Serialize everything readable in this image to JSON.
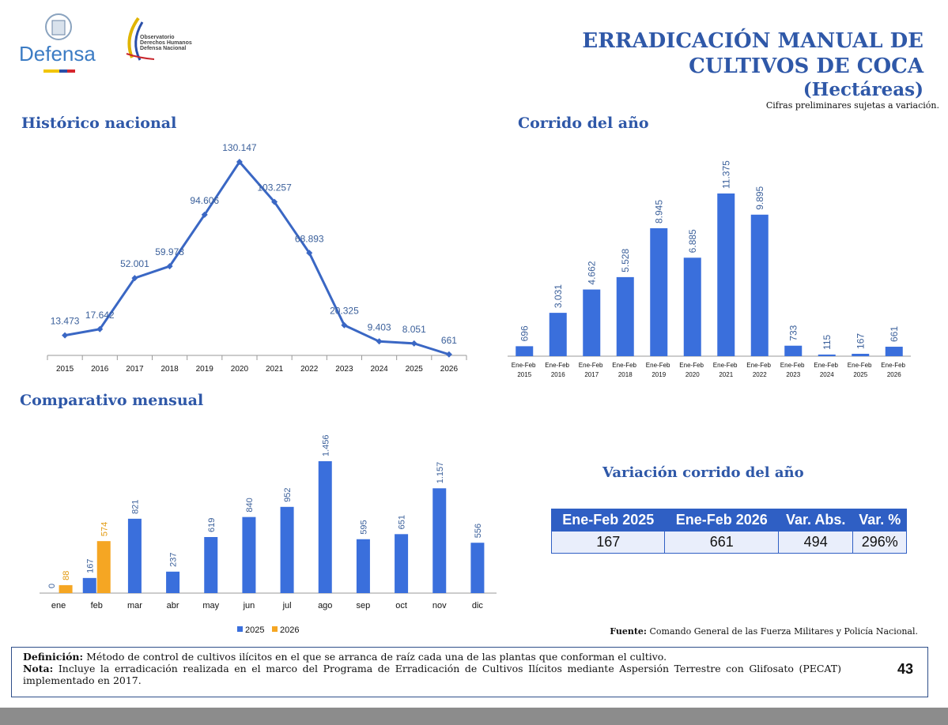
{
  "header": {
    "logo": "Defensa",
    "observatory": [
      "Observatorio",
      "Derechos Humanos",
      "Defensa Nacional"
    ],
    "title": [
      "ERRADICACIÓN MANUAL DE",
      "CULTIVOS DE COCA"
    ],
    "unit": "(Hectáreas)",
    "note": "Cifras preliminares sujetas a variación."
  },
  "chart_data": [
    {
      "type": "line",
      "title": "Histórico nacional",
      "color": "#3a67c4",
      "categories": [
        "2015",
        "2016",
        "2017",
        "2018",
        "2019",
        "2020",
        "2021",
        "2022",
        "2023",
        "2024",
        "2025",
        "2026"
      ],
      "values": [
        13473,
        17642,
        52001,
        59978,
        94606,
        130147,
        103257,
        68893,
        20325,
        9403,
        8051,
        661
      ],
      "value_labels": [
        "13.473",
        "17.642",
        "52.001",
        "59.978",
        "94.606",
        "130.147",
        "103.257",
        "68.893",
        "20.325",
        "9.403",
        "8.051",
        "661"
      ]
    },
    {
      "type": "bar",
      "title": "Corrido del año",
      "color": "#3a6fdc",
      "categories": [
        "Ene-Feb 2015",
        "Ene-Feb 2016",
        "Ene-Feb 2017",
        "Ene-Feb 2018",
        "Ene-Feb 2019",
        "Ene-Feb 2020",
        "Ene-Feb 2021",
        "Ene-Feb 2022",
        "Ene-Feb 2023",
        "Ene-Feb 2024",
        "Ene-Feb 2025",
        "Ene-Feb 2026"
      ],
      "values": [
        696,
        3031,
        4662,
        5528,
        8945,
        6885,
        11375,
        9895,
        733,
        115,
        167,
        661
      ],
      "value_labels": [
        "696",
        "3.031",
        "4.662",
        "5.528",
        "8.945",
        "6.885",
        "11.375",
        "9.895",
        "733",
        "115",
        "167",
        "661"
      ]
    },
    {
      "type": "grouped_bar",
      "title": "Comparativo mensual",
      "categories": [
        "ene",
        "feb",
        "mar",
        "abr",
        "may",
        "jun",
        "jul",
        "ago",
        "sep",
        "oct",
        "nov",
        "dic"
      ],
      "series": [
        {
          "name": "2025",
          "color": "#3a6fdc",
          "values": [
            0,
            167,
            821,
            237,
            619,
            840,
            952,
            1456,
            595,
            651,
            1157,
            556
          ],
          "value_labels": [
            "0",
            "167",
            "821",
            "237",
            "619",
            "840",
            "952",
            "1.456",
            "595",
            "651",
            "1.157",
            "556"
          ]
        },
        {
          "name": "2026",
          "color": "#f5a623",
          "values": [
            88,
            574,
            null,
            null,
            null,
            null,
            null,
            null,
            null,
            null,
            null,
            null
          ]
        }
      ]
    }
  ],
  "variation": {
    "title": "Variación corrido del año",
    "header": [
      "Ene-Feb 2025",
      "Ene-Feb 2026",
      "Var. Abs.",
      "Var. %"
    ],
    "rows": [
      [
        "167",
        "661",
        "494",
        "296%"
      ]
    ]
  },
  "source": {
    "label": "Fuente:",
    "text": "Comando General de las Fuerza Militares y Policía Nacional."
  },
  "footer": {
    "definition_label": "Definición:",
    "definition": "Método de control de cultivos ilícitos en el que se arranca de raíz cada una de las plantas que conforman el cultivo.",
    "note_label": "Nota:",
    "note": "Incluye la erradicación realizada en el marco del Programa de Erradicación de Cultivos Ilícitos mediante Aspersión Terrestre con Glifosato (PECAT) implementado en 2017.",
    "page": "43"
  }
}
